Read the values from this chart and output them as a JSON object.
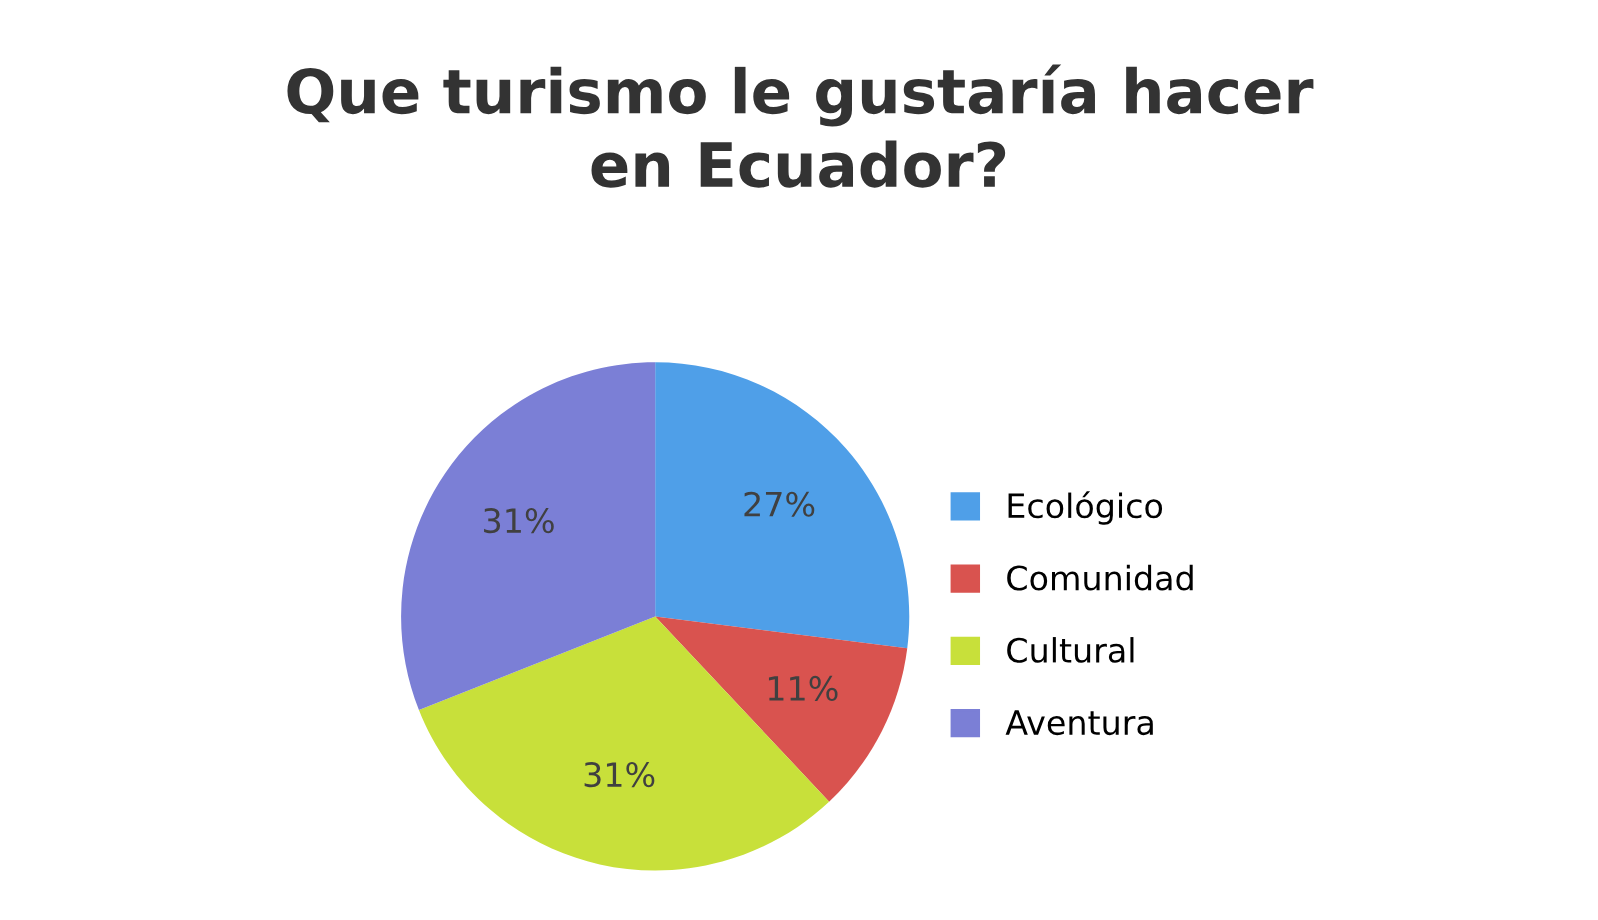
{
  "chart_data": {
    "type": "pie",
    "title": "Que turismo le gustaría hacer\nen Ecuador?",
    "categories": [
      "Ecológico",
      "Comunidad",
      "Cultural",
      "Aventura"
    ],
    "values": [
      27,
      11,
      31,
      31
    ],
    "value_labels": [
      "27%",
      "11%",
      "31%",
      "31%"
    ],
    "colors": [
      "#4f9fe8",
      "#d9534f",
      "#c8e03a",
      "#7b7fd6"
    ],
    "legend": "right"
  }
}
